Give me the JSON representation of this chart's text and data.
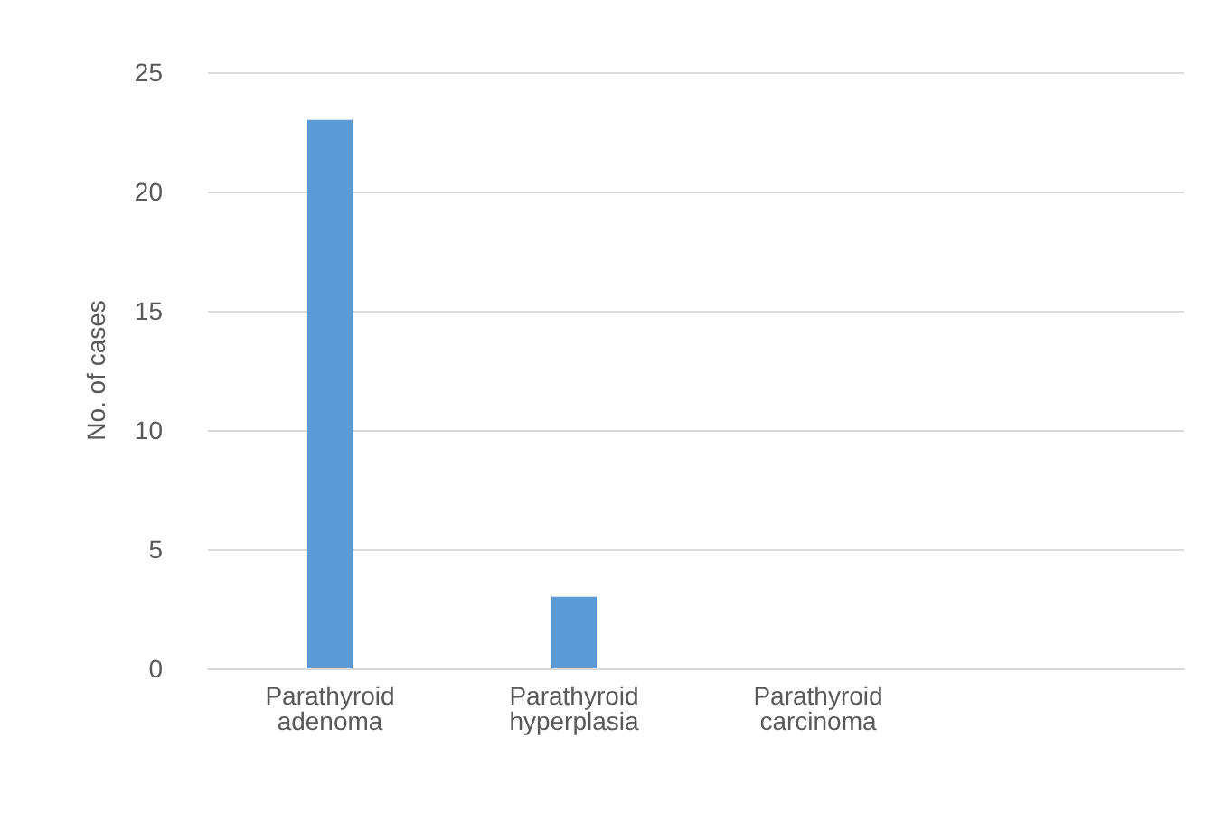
{
  "chart_data": {
    "type": "bar",
    "ylabel": "No. of cases",
    "categories": [
      "Parathyroid adenoma",
      "Parathyroid hyperplasia",
      "Parathyroid carcinoma",
      null
    ],
    "values": [
      23,
      3,
      0,
      null
    ],
    "color": "#5b9bd5",
    "ylim": [
      0,
      25
    ],
    "yticks": [
      0,
      5,
      10,
      15,
      20,
      25
    ],
    "grid": "y"
  }
}
